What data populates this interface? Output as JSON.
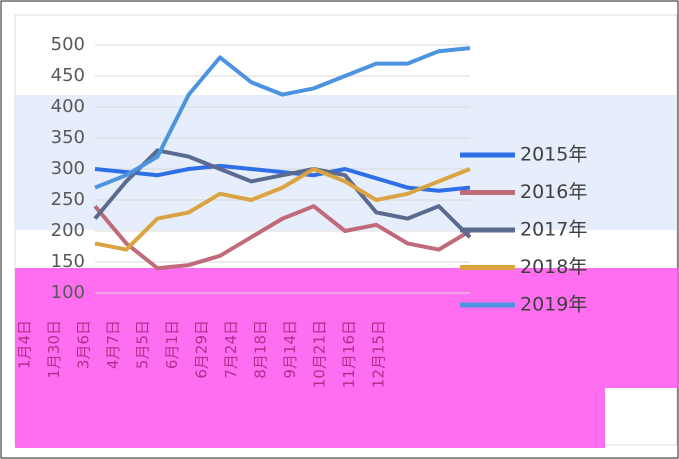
{
  "chart_data": {
    "type": "line",
    "categories": [
      "1月4日",
      "1月30日",
      "3月6日",
      "4月7日",
      "5月5日",
      "6月1日",
      "6月29日",
      "7月24日",
      "8月18日",
      "9月14日",
      "10月21日",
      "11月16日",
      "12月15日"
    ],
    "series": [
      {
        "name": "2015年",
        "color": "#2e6fe8",
        "values": [
          300,
          295,
          290,
          300,
          305,
          300,
          295,
          290,
          300,
          285,
          270,
          265,
          270
        ]
      },
      {
        "name": "2016年",
        "color": "#c06a7a",
        "values": [
          240,
          180,
          140,
          145,
          160,
          190,
          220,
          240,
          200,
          210,
          180,
          170,
          200
        ]
      },
      {
        "name": "2017年",
        "color": "#5b6b8f",
        "values": [
          220,
          280,
          330,
          320,
          300,
          280,
          290,
          300,
          290,
          230,
          220,
          240,
          190
        ]
      },
      {
        "name": "2018年",
        "color": "#d9a441",
        "values": [
          180,
          170,
          220,
          230,
          260,
          250,
          270,
          300,
          280,
          250,
          260,
          280,
          300
        ]
      },
      {
        "name": "2019年",
        "color": "#4d94e0",
        "values": [
          270,
          290,
          320,
          420,
          480,
          440,
          420,
          430,
          450,
          470,
          470,
          490,
          495
        ]
      }
    ],
    "ylim": [
      100,
      500
    ],
    "yticks": [
      100,
      150,
      200,
      250,
      300,
      350,
      400,
      450,
      500
    ],
    "grid": true
  }
}
